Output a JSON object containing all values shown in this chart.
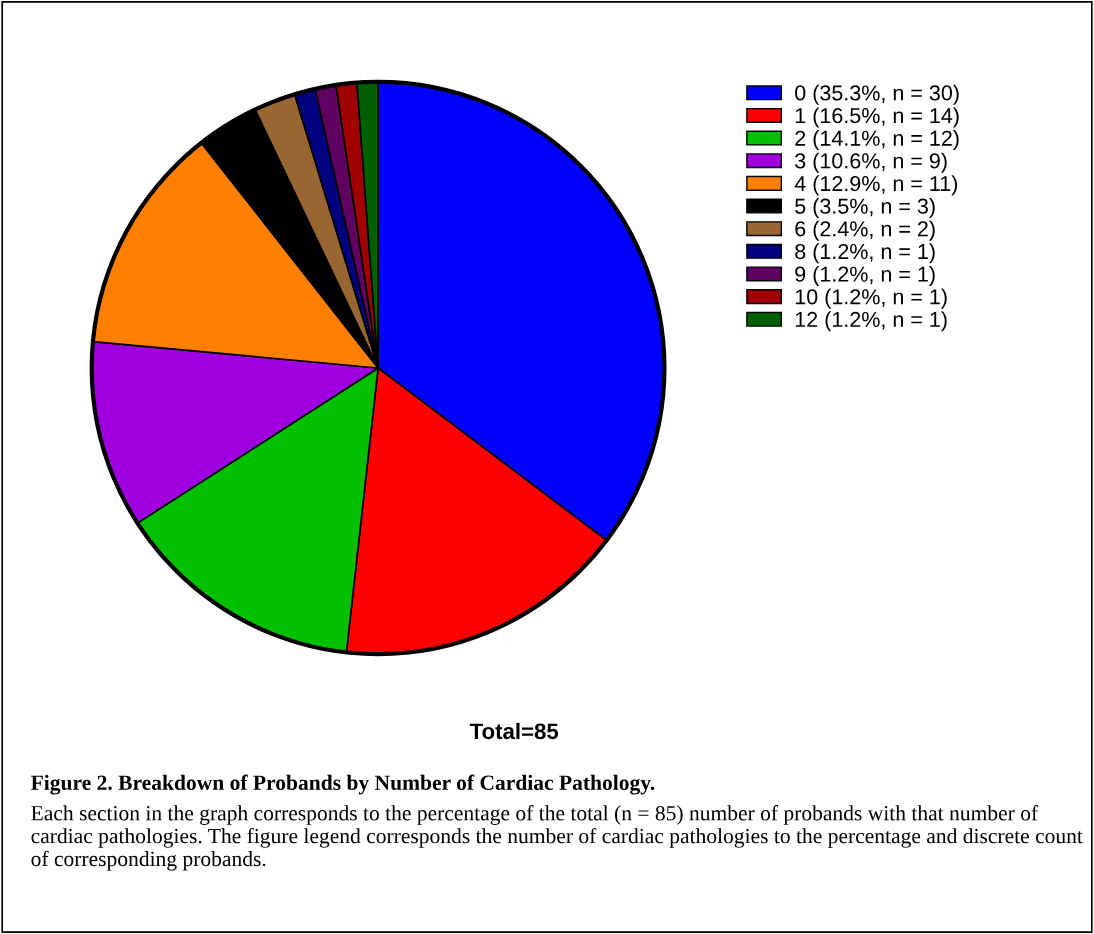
{
  "chart_data": {
    "type": "pie",
    "categories": [
      "0 (35.3%, n = 30)",
      "1 (16.5%, n = 14)",
      "2 (14.1%, n = 12)",
      "3 (10.6%, n = 9)",
      "4 (12.9%, n = 11)",
      "5 (3.5%, n = 3)",
      "6 (2.4%, n = 2)",
      "8 (1.2%, n = 1)",
      "9 (1.2%, n = 1)",
      "10 (1.2%, n = 1)",
      "12 (1.2%, n = 1)"
    ],
    "values": [
      30,
      14,
      12,
      9,
      11,
      3,
      2,
      1,
      1,
      1,
      1
    ],
    "colors": [
      "#0000ff",
      "#ff0000",
      "#00c000",
      "#a000e0",
      "#ff8000",
      "#000000",
      "#996633",
      "#000080",
      "#600060",
      "#a00000",
      "#006000"
    ],
    "legend": "right",
    "annotations": [
      "Total=85",
      "Figure 2. Breakdown of Probands by Number of Cardiac Pathology.",
      "Each section in the graph corresponds to the percentage of the total (n = 85) number of probands with that number of cardiac pathologies. The figure legend corresponds the number of cardiac pathologies to the percentage and discrete count of corresponding probands."
    ]
  }
}
